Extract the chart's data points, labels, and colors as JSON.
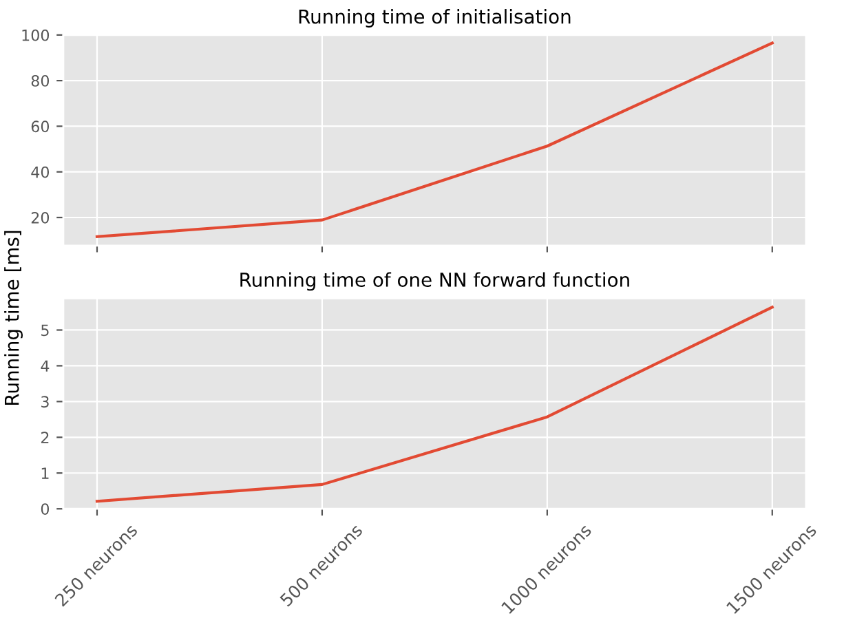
{
  "chart_data": [
    {
      "type": "line",
      "title": "Running time of initialisation",
      "ylabel": "Running time [ms]",
      "categories": [
        null,
        null,
        null,
        null
      ],
      "series": [
        {
          "color": "#e24a33",
          "values": [
            11.6,
            18.9,
            51.3,
            96.5
          ]
        }
      ],
      "ylim": [
        7.7,
        100
      ],
      "yticks": [
        20,
        40,
        60,
        80,
        100
      ],
      "grid": true,
      "tick_labels": "y"
    },
    {
      "type": "line",
      "title": "Running time of one NN forward function",
      "categories": [
        "250 neurons",
        "500 neurons",
        "1000 neurons",
        "1500 neurons"
      ],
      "series": [
        {
          "color": "#e24a33",
          "values": [
            0.21,
            0.68,
            2.57,
            5.64
          ]
        }
      ],
      "ylim": [
        0,
        5.89
      ],
      "yticks": [
        0,
        1,
        2,
        3,
        4,
        5
      ],
      "grid": true
    }
  ]
}
